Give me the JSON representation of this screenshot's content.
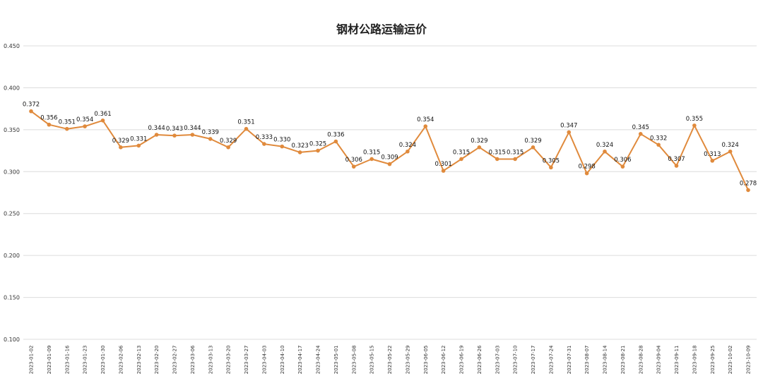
{
  "chart_data": {
    "type": "line",
    "title": "钢材公路运输运价",
    "xlabel": "",
    "ylabel": "",
    "ylim": [
      0.1,
      0.45
    ],
    "yticks": [
      "0.100",
      "0.150",
      "0.200",
      "0.250",
      "0.300",
      "0.350",
      "0.400",
      "0.450"
    ],
    "grid": true,
    "legend": "none",
    "colors": {
      "line": "#E08A3C",
      "grid": "#dcdcdc"
    },
    "x": [
      "2023-01-02",
      "2023-01-09",
      "2023-01-16",
      "2023-01-23",
      "2023-01-30",
      "2023-02-06",
      "2023-02-13",
      "2023-02-20",
      "2023-02-27",
      "2023-03-06",
      "2023-03-13",
      "2023-03-20",
      "2023-03-27",
      "2023-04-03",
      "2023-04-10",
      "2023-04-17",
      "2023-04-24",
      "2023-05-01",
      "2023-05-08",
      "2023-05-15",
      "2023-05-22",
      "2023-05-29",
      "2023-06-05",
      "2023-06-12",
      "2023-06-19",
      "2023-06-26",
      "2023-07-03",
      "2023-07-10",
      "2023-07-17",
      "2023-07-24",
      "2023-07-31",
      "2023-08-07",
      "2023-08-14",
      "2023-08-21",
      "2023-08-28",
      "2023-09-04",
      "2023-09-11",
      "2023-09-18",
      "2023-09-25",
      "2023-10-02",
      "2023-10-09"
    ],
    "series": [
      {
        "values": [
          0.372,
          0.356,
          0.351,
          0.354,
          0.361,
          0.329,
          0.331,
          0.344,
          0.343,
          0.344,
          0.339,
          0.329,
          0.351,
          0.333,
          0.33,
          0.323,
          0.325,
          0.336,
          0.306,
          0.315,
          0.309,
          0.324,
          0.354,
          0.301,
          0.315,
          0.329,
          0.315,
          0.315,
          0.329,
          0.305,
          0.347,
          0.298,
          0.324,
          0.306,
          0.345,
          0.332,
          0.307,
          0.355,
          0.313,
          0.324,
          0.278
        ],
        "labels": [
          "0.372",
          "0.356",
          "0.351",
          "0.354",
          "0.361",
          "0.329",
          "0.331",
          "0.344",
          "0.343",
          "0.344",
          "0.339",
          "0.329",
          "0.351",
          "0.333",
          "0.330",
          "0.323",
          "0.325",
          "0.336",
          "0.306",
          "0.315",
          "0.309",
          "0.324",
          "0.354",
          "0.301",
          "0.315",
          "0.329",
          "0.315",
          "0.315",
          "0.329",
          "0.305",
          "0.347",
          "0.298",
          "0.324",
          "0.306",
          "0.345",
          "0.332",
          "0.307",
          "0.355",
          "0.313",
          "0.324",
          "0.278"
        ]
      }
    ]
  }
}
